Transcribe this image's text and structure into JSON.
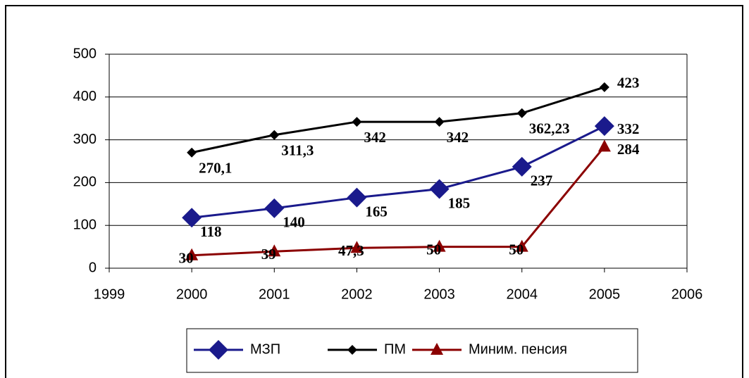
{
  "chart_data": {
    "type": "line",
    "x": [
      2000,
      2001,
      2002,
      2003,
      2004,
      2005
    ],
    "series": [
      {
        "name": "МЗП",
        "color": "#1a1a8c",
        "marker": "diamond-large",
        "values": [
          118,
          140,
          165,
          185,
          237,
          332
        ]
      },
      {
        "name": "ПМ",
        "color": "#000000",
        "marker": "diamond",
        "values": [
          270.1,
          311.3,
          342,
          342,
          362.23,
          423
        ],
        "value_labels": [
          "270,1",
          "311,3",
          "342",
          "342",
          "362,23",
          "423"
        ]
      },
      {
        "name": "Миним. пенсия",
        "color": "#8b0000",
        "marker": "triangle",
        "values": [
          30,
          39,
          47.3,
          50,
          50,
          284
        ],
        "value_labels": [
          "30",
          "39",
          "47,3",
          "50",
          "50",
          "284"
        ]
      }
    ],
    "xlim": [
      1999,
      2006
    ],
    "xticks": [
      1999,
      2000,
      2001,
      2002,
      2003,
      2004,
      2005,
      2006
    ],
    "ylim": [
      0,
      500
    ],
    "yticks": [
      0,
      100,
      200,
      300,
      400,
      500
    ],
    "grid": true,
    "legend": "bottom"
  }
}
